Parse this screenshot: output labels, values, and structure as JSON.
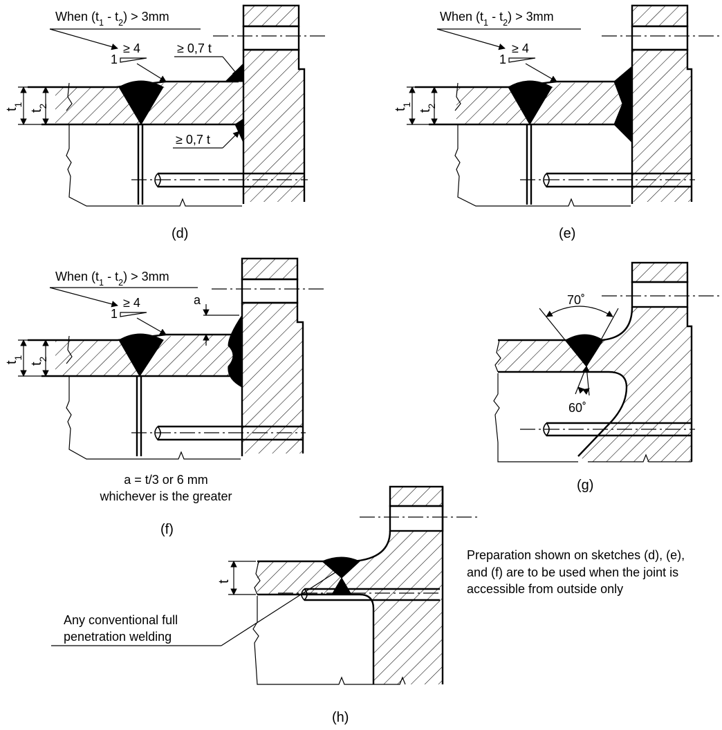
{
  "sketches": {
    "d": {
      "label": "(d)",
      "condition": "When (t1 - t2) > 3mm",
      "taper_ratio": "≥ 4",
      "taper_one": "1",
      "fillet_top": "≥ 0,7 t",
      "fillet_bottom": "≥ 0,7 t",
      "t1": "t1",
      "t2": "t2"
    },
    "e": {
      "label": "(e)",
      "condition": "When (t1 - t2) > 3mm",
      "taper_ratio": "≥ 4",
      "taper_one": "1",
      "t1": "t1",
      "t2": "t2"
    },
    "f": {
      "label": "(f)",
      "condition": "When (t1 - t2) > 3mm",
      "taper_ratio": "≥ 4",
      "taper_one": "1",
      "a_symbol": "a",
      "t1": "t1",
      "t2": "t2",
      "note_line1": "a = t/3 or 6 mm",
      "note_line2": "whichever is the greater"
    },
    "g": {
      "label": "(g)",
      "angle_top": "70˚",
      "angle_bottom": "60˚"
    },
    "h": {
      "label": "(h)",
      "t": "t",
      "callout_line1": "Any conventional full",
      "callout_line2": "penetration welding"
    }
  },
  "note": {
    "line1": "Preparation shown on sketches (d), (e),",
    "line2": "and (f) are to be used when the joint is",
    "line3": "accessible from outside only"
  }
}
